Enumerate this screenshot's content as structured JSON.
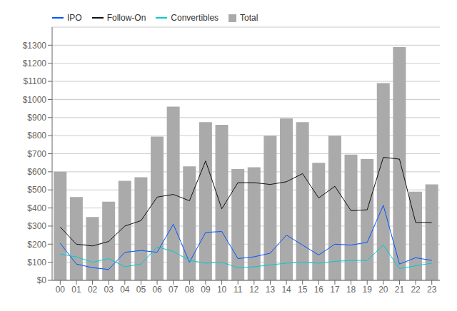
{
  "chart_data": {
    "type": "bar",
    "categories": [
      "00",
      "01",
      "02",
      "03",
      "04",
      "05",
      "06",
      "07",
      "08",
      "09",
      "10",
      "11",
      "12",
      "13",
      "14",
      "15",
      "16",
      "17",
      "18",
      "19",
      "20",
      "21",
      "22",
      "23"
    ],
    "series": [
      {
        "name": "IPO",
        "type": "line",
        "color": "#0055ff",
        "values": [
          205,
          90,
          70,
          60,
          155,
          165,
          155,
          310,
          100,
          265,
          270,
          120,
          130,
          150,
          250,
          195,
          140,
          200,
          195,
          210,
          415,
          90,
          125,
          110
        ]
      },
      {
        "name": "Follow-On",
        "type": "line",
        "color": "#111111",
        "values": [
          295,
          200,
          190,
          215,
          300,
          330,
          460,
          475,
          440,
          660,
          395,
          540,
          540,
          530,
          545,
          590,
          455,
          520,
          385,
          390,
          680,
          670,
          320,
          320
        ]
      },
      {
        "name": "Convertibles",
        "type": "line",
        "color": "#00cccc",
        "values": [
          145,
          130,
          100,
          120,
          75,
          90,
          185,
          160,
          110,
          95,
          100,
          70,
          75,
          85,
          95,
          100,
          95,
          105,
          110,
          110,
          195,
          65,
          80,
          95
        ]
      },
      {
        "name": "Total",
        "type": "bar",
        "color": "#aaaaaa",
        "values": [
          600,
          460,
          350,
          435,
          550,
          570,
          795,
          960,
          630,
          875,
          860,
          615,
          625,
          800,
          895,
          875,
          650,
          800,
          695,
          670,
          1090,
          1290,
          490,
          530
        ]
      }
    ],
    "ylim": [
      0,
      1400
    ],
    "yticks": [
      {
        "value": 0,
        "label": "$0"
      },
      {
        "value": 100,
        "label": "$100"
      },
      {
        "value": 200,
        "label": "$200"
      },
      {
        "value": 300,
        "label": "$300"
      },
      {
        "value": 400,
        "label": "$400"
      },
      {
        "value": 500,
        "label": "$500"
      },
      {
        "value": 600,
        "label": "$600"
      },
      {
        "value": 700,
        "label": "$700"
      },
      {
        "value": 800,
        "label": "$800"
      },
      {
        "value": 900,
        "label": "$900"
      },
      {
        "value": 1000,
        "label": "$1000"
      },
      {
        "value": 1100,
        "label": "$1100"
      },
      {
        "value": 1200,
        "label": "$1200"
      },
      {
        "value": 1300,
        "label": "$1300"
      }
    ],
    "grid": true,
    "legend": "upper left"
  }
}
